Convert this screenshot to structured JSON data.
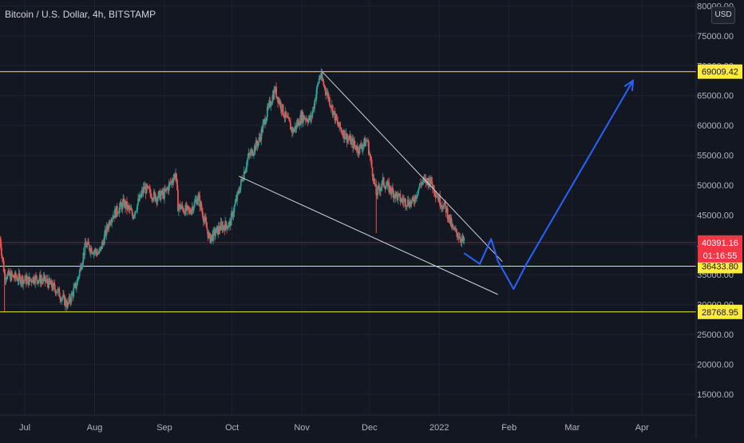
{
  "header": {
    "title": "Bitcoin / U.S. Dollar, 4h, BITSTAMP"
  },
  "scale_button": {
    "label": "USD"
  },
  "colors": {
    "background": "#131722",
    "grid": "#1f2330",
    "axis_text": "#b2b5be",
    "candle_up": "#26a69a",
    "candle_down": "#ef5350",
    "level_line": "#ffeb3b",
    "trend_line": "#d1d4dc",
    "projection": "#2962ff",
    "current_price": "#f23645"
  },
  "chart_data": {
    "type": "candlestick",
    "title": "Bitcoin / U.S. Dollar, 4h, BITSTAMP",
    "y_axis": {
      "ticks": [
        "80000.00",
        "75000.00",
        "70000.00",
        "65000.00",
        "60000.00",
        "55000.00",
        "50000.00",
        "45000.00",
        "40000.00",
        "35000.00",
        "30000.00",
        "25000.00",
        "20000.00",
        "15000.00"
      ],
      "range": [
        11500,
        81000
      ],
      "position": "right"
    },
    "x_axis": {
      "labels": [
        "Jul",
        "Aug",
        "Sep",
        "Oct",
        "Nov",
        "Dec",
        "2022",
        "Feb",
        "Mar",
        "Apr"
      ],
      "range": [
        "2021-06-20",
        "2022-04-25"
      ]
    },
    "grid": true,
    "price_path": [
      [
        "2021-06-20",
        41000
      ],
      [
        "2021-06-22",
        35000
      ],
      [
        "2021-06-27",
        34500
      ],
      [
        "2021-07-03",
        34000
      ],
      [
        "2021-07-05",
        34500
      ],
      [
        "2021-07-10",
        34000
      ],
      [
        "2021-07-15",
        32500
      ],
      [
        "2021-07-20",
        29900
      ],
      [
        "2021-07-24",
        33500
      ],
      [
        "2021-07-28",
        40000
      ],
      [
        "2021-08-03",
        38500
      ],
      [
        "2021-08-08",
        44500
      ],
      [
        "2021-08-14",
        47000
      ],
      [
        "2021-08-18",
        45000
      ],
      [
        "2021-08-23",
        49500
      ],
      [
        "2021-08-28",
        48000
      ],
      [
        "2021-09-01",
        48500
      ],
      [
        "2021-09-06",
        52000
      ],
      [
        "2021-09-07",
        46500
      ],
      [
        "2021-09-12",
        45500
      ],
      [
        "2021-09-16",
        48000
      ],
      [
        "2021-09-21",
        41000
      ],
      [
        "2021-09-26",
        43000
      ],
      [
        "2021-09-30",
        43500
      ],
      [
        "2021-10-04",
        49000
      ],
      [
        "2021-10-08",
        54500
      ],
      [
        "2021-10-13",
        57500
      ],
      [
        "2021-10-16",
        61500
      ],
      [
        "2021-10-20",
        66000
      ],
      [
        "2021-10-24",
        62000
      ],
      [
        "2021-10-28",
        59000
      ],
      [
        "2021-11-01",
        61500
      ],
      [
        "2021-11-05",
        61000
      ],
      [
        "2021-11-09",
        68500
      ],
      [
        "2021-11-13",
        64500
      ],
      [
        "2021-11-17",
        60000
      ],
      [
        "2021-11-21",
        58000
      ],
      [
        "2021-11-26",
        56000
      ],
      [
        "2021-11-30",
        57500
      ],
      [
        "2021-12-04",
        48500
      ],
      [
        "2021-12-07",
        50500
      ],
      [
        "2021-12-11",
        49000
      ],
      [
        "2021-12-15",
        47500
      ],
      [
        "2021-12-20",
        47000
      ],
      [
        "2021-12-24",
        50500
      ],
      [
        "2021-12-28",
        50800
      ],
      [
        "2022-01-01",
        47500
      ],
      [
        "2022-01-04",
        46000
      ],
      [
        "2022-01-07",
        42500
      ],
      [
        "2022-01-10",
        41500
      ],
      [
        "2022-01-12",
        40391
      ]
    ],
    "wicks": [
      {
        "date": "2021-06-22",
        "low": 28800
      },
      {
        "date": "2021-12-04",
        "low": 42000
      },
      {
        "date": "2021-11-10",
        "high": 69000
      }
    ],
    "levels": [
      {
        "price": 69009.42,
        "label": "69009.42"
      },
      {
        "price": 36433.8,
        "label": "36433.80"
      },
      {
        "price": 28768.95,
        "label": "28768.95"
      }
    ],
    "current_price": {
      "price": 40391.16,
      "label": "40391.16",
      "countdown": "01:16:55"
    },
    "wedge": {
      "upper": [
        [
          "2021-11-10",
          69000
        ],
        [
          "2022-01-29",
          37200
        ]
      ],
      "lower": [
        [
          "2021-10-04",
          51500
        ],
        [
          "2022-01-27",
          31700
        ]
      ]
    },
    "projection": [
      [
        "2022-01-12",
        38600
      ],
      [
        "2022-01-19",
        36800
      ],
      [
        "2022-01-24",
        41000
      ],
      [
        "2022-01-27",
        37300
      ],
      [
        "2022-02-03",
        32600
      ],
      [
        "2022-02-09",
        37000
      ],
      [
        "2022-03-28",
        67500
      ]
    ]
  }
}
